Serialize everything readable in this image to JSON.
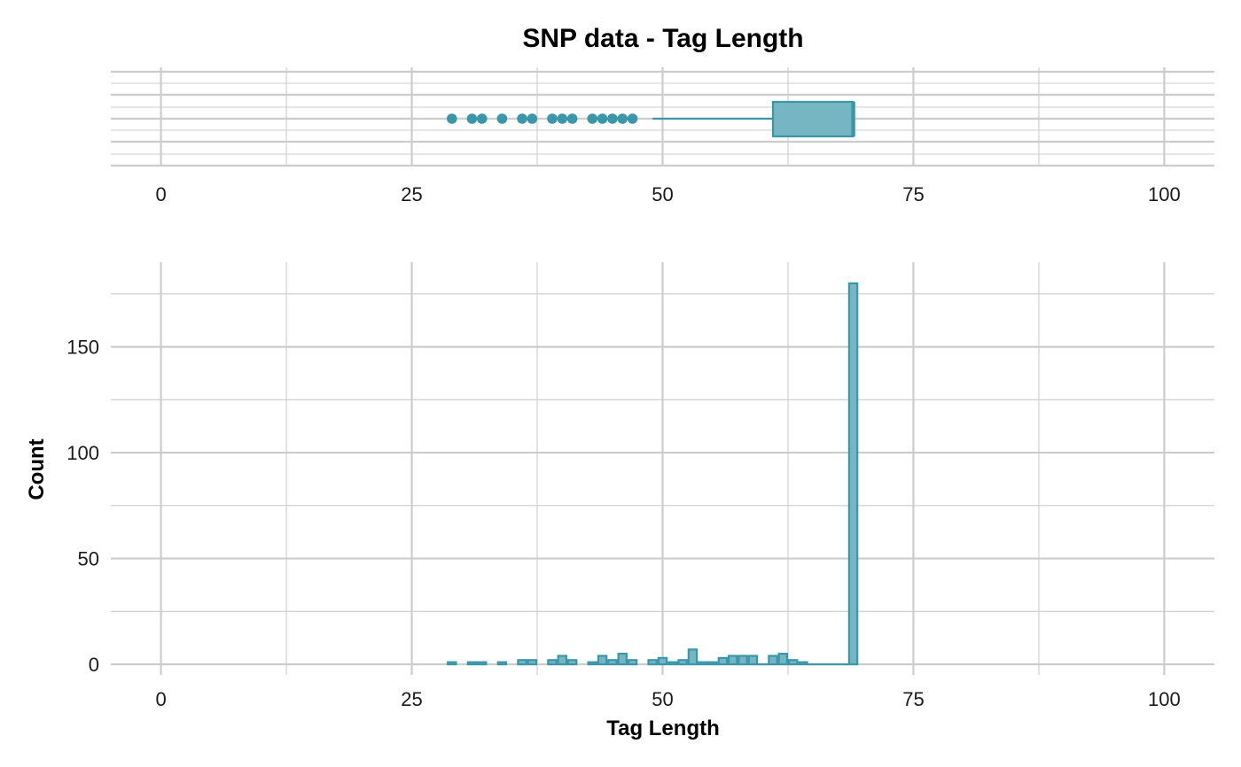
{
  "colors": {
    "accent": "#3a97a9",
    "fill": "#76b6c3",
    "grid": "#cccccc"
  },
  "chart_data": [
    {
      "type": "box",
      "title": "SNP data - Tag Length",
      "xlim": [
        -5,
        105
      ],
      "x_ticks": [
        0,
        25,
        50,
        75,
        100
      ],
      "x_tick_labels": [
        "0",
        "25",
        "50",
        "75",
        "100"
      ],
      "box": {
        "lower_whisker": 49,
        "q1": 61,
        "median": 69,
        "q3": 69,
        "upper_whisker": 69
      },
      "outliers": [
        29,
        31,
        32,
        34,
        36,
        37,
        39,
        40,
        41,
        43,
        44,
        45,
        46,
        47
      ],
      "grid": true
    },
    {
      "type": "bar",
      "xlabel": "Tag Length",
      "ylabel": "Count",
      "xlim": [
        -5,
        105
      ],
      "ylim": [
        -5,
        190
      ],
      "x_ticks": [
        0,
        25,
        50,
        75,
        100
      ],
      "x_tick_labels": [
        "0",
        "25",
        "50",
        "75",
        "100"
      ],
      "y_ticks": [
        0,
        50,
        100,
        150
      ],
      "y_tick_labels": [
        "0",
        "50",
        "100",
        "150"
      ],
      "bin_width": 0.82,
      "x": [
        29,
        31,
        32,
        34,
        36,
        37,
        39,
        40,
        41,
        43,
        44,
        45,
        46,
        47,
        49,
        50,
        51,
        52,
        53,
        54,
        55,
        56,
        57,
        58,
        59,
        60,
        61,
        62,
        63,
        64,
        65,
        66,
        67,
        68,
        69
      ],
      "values": [
        1,
        1,
        1,
        1,
        2,
        2,
        2,
        4,
        2,
        1,
        4,
        2,
        5,
        2,
        2,
        3,
        1,
        2,
        7,
        1,
        1,
        3,
        4,
        4,
        4,
        0,
        4,
        5,
        2,
        1,
        0,
        0,
        0,
        0,
        180
      ],
      "grid": true
    }
  ]
}
